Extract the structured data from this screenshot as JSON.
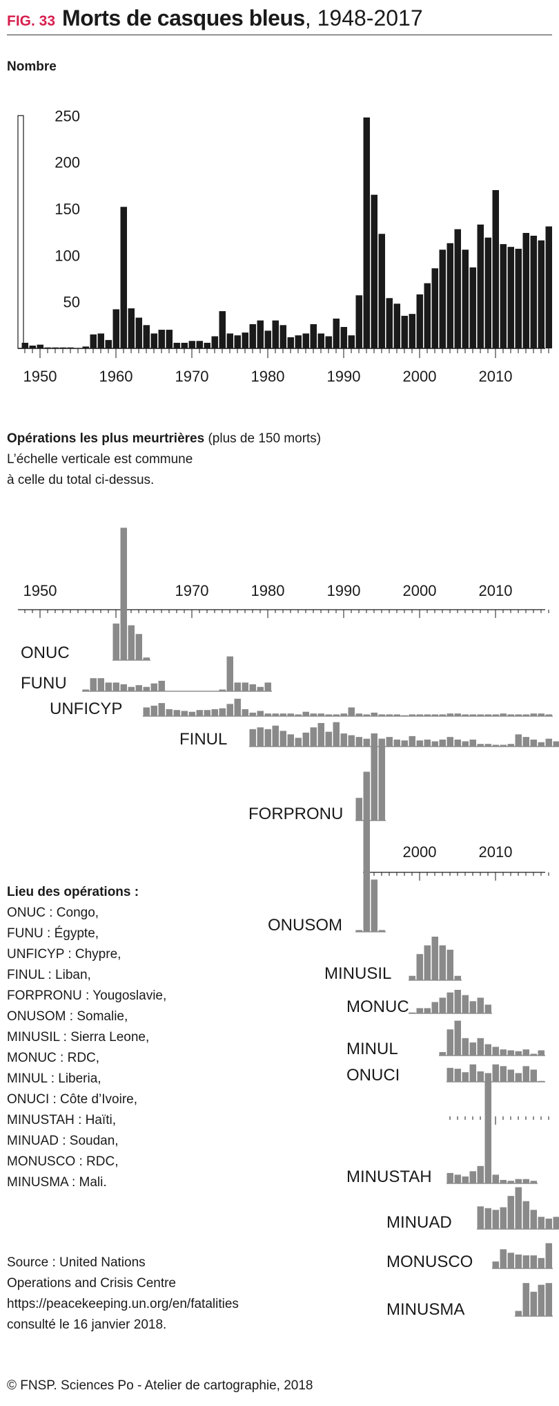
{
  "header": {
    "fig_number": "FIG. 33",
    "title_bold": "Morts de casques bleus",
    "title_rest": ", 1948-2017"
  },
  "main_chart": {
    "unit_label": "Nombre"
  },
  "section2": {
    "title_bold": "Opérations les plus meurtrières",
    "title_rest": " (plus de 150 morts)",
    "note_line1": "L’échelle verticale est commune",
    "note_line2": "à celle du total ci-dessus."
  },
  "legend": {
    "title": "Lieu des opérations :",
    "items": [
      "ONUC : Congo,",
      "FUNU : Égypte,",
      "UNFICYP : Chypre,",
      "FINUL : Liban,",
      "FORPRONU : Yougoslavie,",
      "ONUSOM : Somalie,",
      "MINUSIL : Sierra Leone,",
      "MONUC : RDC,",
      "MINUL : Liberia,",
      "ONUCI : Côte d’Ivoire,",
      "MINUSTAH : Haïti,",
      "MINUAD : Soudan,",
      "MONUSCO : RDC,",
      "MINUSMA : Mali."
    ]
  },
  "source": {
    "line1": "Source : United Nations",
    "line2": "Operations and Crisis Centre",
    "line3": "https://peacekeeping.un.org/en/fatalities",
    "line4": "consulté le 16 janvier 2018."
  },
  "credit": "© FNSP. Sciences Po - Atelier de cartographie, 2018",
  "colors": {
    "total_bar": "#1a1a1a",
    "op_bar": "#8a8a8a",
    "accent": "#d61f4e"
  },
  "chart_data": [
    {
      "type": "bar",
      "title": "Morts de casques bleus, 1948-2017",
      "ylabel": "Nombre",
      "ylim": [
        0,
        250
      ],
      "yticks": [
        50,
        100,
        150,
        200,
        250
      ],
      "xticks": [
        1950,
        1960,
        1970,
        1980,
        1990,
        2000,
        2010
      ],
      "grid": false,
      "x_start": 1948,
      "values": [
        6,
        3,
        4,
        1,
        1,
        1,
        1,
        0,
        2,
        15,
        16,
        9,
        42,
        152,
        43,
        33,
        25,
        16,
        20,
        20,
        6,
        6,
        8,
        8,
        6,
        13,
        40,
        16,
        14,
        17,
        26,
        30,
        19,
        30,
        25,
        12,
        14,
        16,
        26,
        16,
        13,
        32,
        23,
        14,
        57,
        248,
        165,
        123,
        54,
        48,
        35,
        37,
        58,
        70,
        86,
        106,
        113,
        128,
        106,
        87,
        133,
        119,
        170,
        112,
        109,
        107,
        124,
        121,
        116,
        131
      ]
    },
    {
      "type": "bar",
      "description_of_scale": "common vertical scale with the total chart",
      "xticks": [
        1950,
        1970,
        1980,
        1990,
        2000,
        2010
      ],
      "operations": [
        {
          "name": "ONUC",
          "start": 1960,
          "values": [
            42,
            152,
            40,
            30,
            3
          ]
        },
        {
          "name": "FUNU",
          "start": 1956,
          "values": [
            2,
            15,
            15,
            10,
            10,
            8,
            5,
            7,
            5,
            9,
            12,
            0,
            0,
            0,
            0,
            0,
            0,
            0,
            2,
            40,
            10,
            10,
            8,
            5,
            10
          ]
        },
        {
          "name": "UNFICYP",
          "start": 1964,
          "values": [
            10,
            12,
            15,
            8,
            7,
            6,
            5,
            7,
            7,
            8,
            9,
            14,
            20,
            8,
            4,
            6,
            3,
            3,
            3,
            3,
            2,
            5,
            3,
            3,
            2,
            2,
            3,
            10,
            3,
            2,
            4,
            2,
            2,
            2,
            1,
            2,
            2,
            2,
            2,
            2,
            3,
            3,
            2,
            2,
            2,
            2,
            2,
            3,
            2,
            2,
            2,
            3,
            3,
            2
          ]
        },
        {
          "name": "FINUL",
          "start": 1978,
          "values": [
            20,
            22,
            20,
            24,
            18,
            14,
            10,
            16,
            22,
            27,
            17,
            28,
            15,
            13,
            11,
            9,
            8,
            6,
            11,
            8,
            7,
            12,
            7,
            8,
            6,
            8,
            11,
            8,
            6,
            8,
            3,
            3,
            2,
            2,
            3,
            14,
            11,
            8,
            5,
            9,
            6,
            4,
            4,
            9,
            2,
            4
          ]
        },
        {
          "name": "FORPRONU",
          "start": 1992,
          "values": [
            26,
            56,
            100,
            94
          ]
        },
        {
          "name": "ONUSOM",
          "start": 1992,
          "values": [
            2,
            130,
            60,
            2
          ]
        },
        {
          "name": "MINUSIL",
          "start": 1999,
          "values": [
            5,
            30,
            40,
            50,
            40,
            35,
            5
          ]
        },
        {
          "name": "MONUC",
          "start": 1999,
          "values": [
            1,
            6,
            6,
            13,
            18,
            24,
            27,
            21,
            14,
            18,
            10
          ]
        },
        {
          "name": "MINUL",
          "start": 2003,
          "values": [
            4,
            30,
            40,
            20,
            15,
            20,
            13,
            10,
            7,
            6,
            5,
            7,
            2,
            6
          ]
        },
        {
          "name": "ONUCI",
          "start": 2004,
          "values": [
            16,
            15,
            11,
            20,
            12,
            10,
            20,
            18,
            14,
            10,
            18,
            14,
            1
          ]
        },
        {
          "name": "MINUSTAH",
          "start": 2004,
          "values": [
            12,
            10,
            8,
            14,
            20,
            125,
            10,
            4,
            3,
            5,
            5,
            3
          ]
        },
        {
          "name": "MINUAD",
          "start": 2008,
          "values": [
            26,
            24,
            22,
            25,
            38,
            48,
            32,
            22,
            14,
            12,
            14
          ]
        },
        {
          "name": "MONUSCO",
          "start": 2010,
          "values": [
            8,
            22,
            18,
            16,
            15,
            15,
            12,
            29
          ]
        },
        {
          "name": "MINUSMA",
          "start": 2013,
          "values": [
            6,
            38,
            28,
            36,
            38
          ]
        }
      ]
    }
  ]
}
